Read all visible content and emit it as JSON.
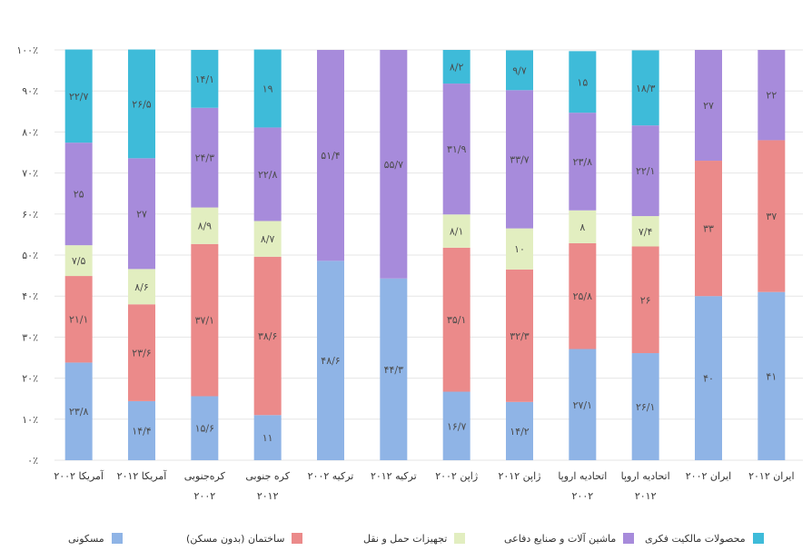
{
  "chart_data": {
    "type": "bar",
    "stacked": true,
    "title": "",
    "xlabel": "",
    "ylabel": "",
    "ylim": [
      0,
      100
    ],
    "y_ticks": [
      "۰٪",
      "۱۰٪",
      "۲۰٪",
      "۳۰٪",
      "۴۰٪",
      "۵۰٪",
      "۶۰٪",
      "۷۰٪",
      "۸۰٪",
      "۹۰٪",
      "۱۰۰٪"
    ],
    "grid": true,
    "legend_position": "bottom",
    "categories": [
      "آمریکا ۲۰۰۲",
      "آمریکا ۲۰۱۲",
      "کره‌جنوبی ۲۰۰۲",
      "کره جنوبی ۲۰۱۲",
      "ترکیه ۲۰۰۲",
      "ترکیه ۲۰۱۲",
      "ژاپن ۲۰۰۲",
      "ژاپن ۲۰۱۲",
      "اتحادیه اروپا ۲۰۰۲",
      "اتحادیه اروپا ۲۰۱۲",
      "ایران ۲۰۰۲",
      "ایران ۲۰۱۲"
    ],
    "series": [
      {
        "name": "مسکونی",
        "color": "#8FB4E6",
        "values": [
          23.8,
          14.4,
          15.6,
          11,
          48.6,
          44.3,
          16.7,
          14.2,
          27.1,
          26.1,
          40,
          41
        ],
        "labels": [
          "۲۳/۸",
          "۱۴/۴",
          "۱۵/۶",
          "۱۱",
          "۴۸/۶",
          "۴۴/۳",
          "۱۶/۷",
          "۱۴/۲",
          "۲۷/۱",
          "۲۶/۱",
          "۴۰",
          "۴۱"
        ]
      },
      {
        "name": "ساختمان (بدون مسکن)",
        "color": "#EB8A8A",
        "values": [
          21.1,
          23.6,
          37.1,
          38.6,
          0,
          0,
          35.1,
          32.3,
          25.8,
          26,
          33,
          37
        ],
        "labels": [
          "۲۱/۱",
          "۲۳/۶",
          "۳۷/۱",
          "۳۸/۶",
          "",
          "",
          "۳۵/۱",
          "۳۲/۳",
          "۲۵/۸",
          "۲۶",
          "۳۳",
          "۳۷"
        ]
      },
      {
        "name": "تجهیزات حمل و نقل",
        "color": "#E2EEC0",
        "values": [
          7.5,
          8.6,
          8.9,
          8.7,
          0,
          0,
          8.1,
          10,
          8,
          7.4,
          0,
          0
        ],
        "labels": [
          "۷/۵",
          "۸/۶",
          "۸/۹",
          "۸/۷",
          "",
          "",
          "۸/۱",
          "۱۰",
          "۸",
          "۷/۴",
          "",
          ""
        ]
      },
      {
        "name": "ماشین آلات و صنایع دفاعی",
        "color": "#A78BDB",
        "values": [
          25,
          27,
          24.3,
          22.8,
          51.4,
          55.7,
          31.9,
          33.7,
          23.8,
          22.1,
          27,
          22
        ],
        "labels": [
          "۲۵",
          "۲۷",
          "۲۴/۳",
          "۲۲/۸",
          "۵۱/۴",
          "۵۵/۷",
          "۳۱/۹",
          "۳۳/۷",
          "۲۳/۸",
          "۲۲/۱",
          "۲۷",
          "۲۲"
        ]
      },
      {
        "name": "محصولات مالکیت فکری",
        "color": "#3EBBD9",
        "values": [
          22.7,
          26.5,
          14.1,
          19,
          0,
          0,
          8.2,
          9.7,
          15,
          18.3,
          0,
          0
        ],
        "labels": [
          "۲۲/۷",
          "۲۶/۵",
          "۱۴/۱",
          "۱۹",
          "",
          "",
          "۸/۲",
          "۹/۷",
          "۱۵",
          "۱۸/۳",
          "",
          ""
        ]
      }
    ]
  },
  "legend": {
    "items": [
      {
        "label": "محصولات مالکیت فکری",
        "color": "#3EBBD9"
      },
      {
        "label": "ماشین آلات و صنایع دفاعی",
        "color": "#A78BDB"
      },
      {
        "label": "تجهیزات حمل و نقل",
        "color": "#E2EEC0"
      },
      {
        "label": "ساختمان (بدون مسکن)",
        "color": "#EB8A8A"
      },
      {
        "label": "مسکونی",
        "color": "#8FB4E6"
      }
    ]
  }
}
